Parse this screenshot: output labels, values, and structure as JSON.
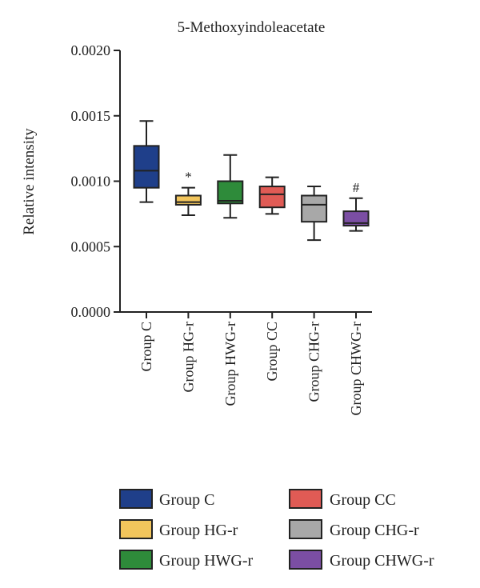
{
  "chart_data": {
    "type": "box",
    "title": "5-Methoxyindoleacetate",
    "xlabel": "",
    "ylabel": "Relative intensity",
    "ylim": [
      0,
      0.002
    ],
    "yticks": [
      "0.0000",
      "0.0005",
      "0.0010",
      "0.0015",
      "0.0020"
    ],
    "grid": false,
    "legend_position": "bottom",
    "series": [
      {
        "name": "Group C",
        "color": "#1f3f8a",
        "min": 0.00084,
        "q1": 0.00095,
        "median": 0.00108,
        "q3": 0.00127,
        "max": 0.00146,
        "annotation": ""
      },
      {
        "name": "Group HG-r",
        "color": "#f2c55c",
        "min": 0.00074,
        "q1": 0.00082,
        "median": 0.00084,
        "q3": 0.00089,
        "max": 0.00095,
        "annotation": "*"
      },
      {
        "name": "Group HWG-r",
        "color": "#2e8b3a",
        "min": 0.00072,
        "q1": 0.00083,
        "median": 0.00085,
        "q3": 0.001,
        "max": 0.0012,
        "annotation": ""
      },
      {
        "name": "Group CC",
        "color": "#e05b55",
        "min": 0.00075,
        "q1": 0.0008,
        "median": 0.0009,
        "q3": 0.00096,
        "max": 0.00103,
        "annotation": ""
      },
      {
        "name": "Group CHG-r",
        "color": "#a8a8a8",
        "min": 0.00055,
        "q1": 0.00069,
        "median": 0.00082,
        "q3": 0.00089,
        "max": 0.00096,
        "annotation": ""
      },
      {
        "name": "Group CHWG-r",
        "color": "#7b4ea3",
        "min": 0.00062,
        "q1": 0.00066,
        "median": 0.00068,
        "q3": 0.00077,
        "max": 0.00087,
        "annotation": "#"
      }
    ]
  }
}
